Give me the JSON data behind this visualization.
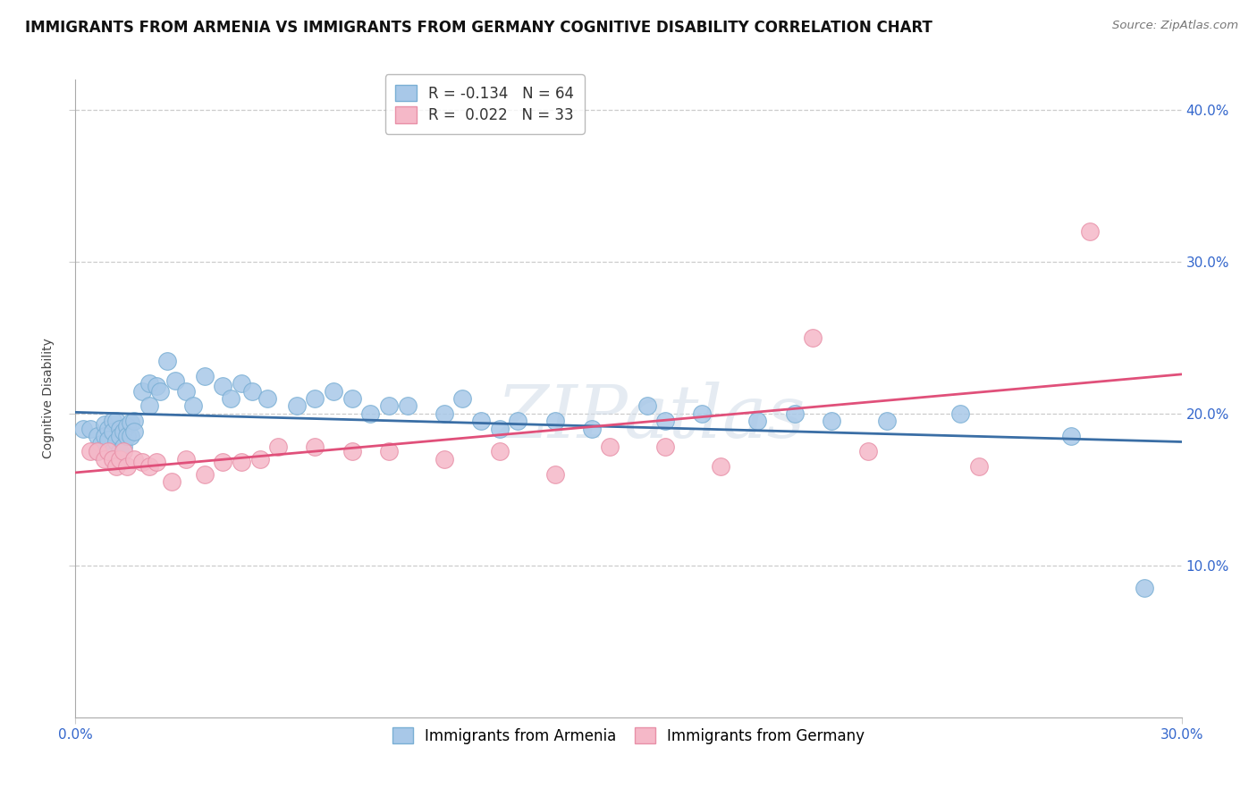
{
  "title": "IMMIGRANTS FROM ARMENIA VS IMMIGRANTS FROM GERMANY COGNITIVE DISABILITY CORRELATION CHART",
  "source": "Source: ZipAtlas.com",
  "ylabel": "Cognitive Disability",
  "watermark": "ZIPatlas",
  "armenia_color": "#a8c8e8",
  "armenia_edge_color": "#7aafd4",
  "armenia_line_color": "#3a6ea5",
  "germany_color": "#f5b8c8",
  "germany_edge_color": "#e890a8",
  "germany_line_color": "#e0507a",
  "xlim": [
    0.0,
    0.3
  ],
  "ylim": [
    0.0,
    0.42
  ],
  "yticks": [
    0.1,
    0.2,
    0.3,
    0.4
  ],
  "ytick_labels": [
    "10.0%",
    "20.0%",
    "30.0%",
    "40.0%"
  ],
  "xtick_left_label": "0.0%",
  "xtick_right_label": "30.0%",
  "background_color": "#ffffff",
  "grid_color": "#cccccc",
  "title_fontsize": 12,
  "axis_label_fontsize": 10,
  "tick_fontsize": 11,
  "legend_fontsize": 12,
  "dot_size": 200,
  "armenia_x": [
    0.002,
    0.004,
    0.006,
    0.006,
    0.007,
    0.008,
    0.008,
    0.009,
    0.009,
    0.01,
    0.01,
    0.01,
    0.011,
    0.011,
    0.012,
    0.012,
    0.012,
    0.013,
    0.013,
    0.014,
    0.014,
    0.015,
    0.015,
    0.016,
    0.016,
    0.018,
    0.02,
    0.02,
    0.022,
    0.023,
    0.025,
    0.027,
    0.03,
    0.032,
    0.035,
    0.04,
    0.042,
    0.045,
    0.048,
    0.052,
    0.06,
    0.065,
    0.07,
    0.075,
    0.08,
    0.085,
    0.09,
    0.1,
    0.105,
    0.11,
    0.115,
    0.12,
    0.13,
    0.14,
    0.155,
    0.16,
    0.17,
    0.185,
    0.195,
    0.205,
    0.22,
    0.24,
    0.27,
    0.29
  ],
  "armenia_y": [
    0.19,
    0.19,
    0.185,
    0.175,
    0.18,
    0.193,
    0.185,
    0.19,
    0.183,
    0.195,
    0.188,
    0.175,
    0.195,
    0.182,
    0.19,
    0.185,
    0.175,
    0.188,
    0.178,
    0.192,
    0.185,
    0.194,
    0.185,
    0.195,
    0.188,
    0.215,
    0.22,
    0.205,
    0.218,
    0.215,
    0.235,
    0.222,
    0.215,
    0.205,
    0.225,
    0.218,
    0.21,
    0.22,
    0.215,
    0.21,
    0.205,
    0.21,
    0.215,
    0.21,
    0.2,
    0.205,
    0.205,
    0.2,
    0.21,
    0.195,
    0.19,
    0.195,
    0.195,
    0.19,
    0.205,
    0.195,
    0.2,
    0.195,
    0.2,
    0.195,
    0.195,
    0.2,
    0.185,
    0.085
  ],
  "germany_x": [
    0.004,
    0.006,
    0.008,
    0.009,
    0.01,
    0.011,
    0.012,
    0.013,
    0.014,
    0.016,
    0.018,
    0.02,
    0.022,
    0.026,
    0.03,
    0.035,
    0.04,
    0.045,
    0.05,
    0.055,
    0.065,
    0.075,
    0.085,
    0.1,
    0.115,
    0.13,
    0.145,
    0.16,
    0.175,
    0.2,
    0.215,
    0.245,
    0.275
  ],
  "germany_y": [
    0.175,
    0.175,
    0.17,
    0.175,
    0.17,
    0.165,
    0.17,
    0.175,
    0.165,
    0.17,
    0.168,
    0.165,
    0.168,
    0.155,
    0.17,
    0.16,
    0.168,
    0.168,
    0.17,
    0.178,
    0.178,
    0.175,
    0.175,
    0.17,
    0.175,
    0.16,
    0.178,
    0.178,
    0.165,
    0.25,
    0.175,
    0.165,
    0.32
  ]
}
